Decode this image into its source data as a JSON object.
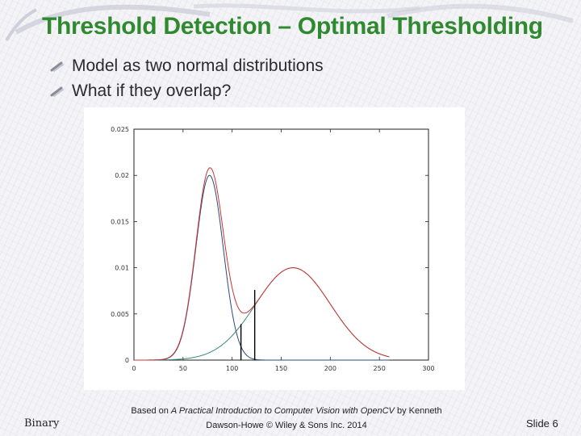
{
  "slide": {
    "title": "Threshold Detection – Optimal Thresholding",
    "bullets": [
      {
        "text": "Model as two normal distributions"
      },
      {
        "text": "What if they overlap?"
      }
    ]
  },
  "footer": {
    "left": "Binary",
    "center_prefix": "Based on",
    "center_book": "A Practical Introduction to Computer Vision with OpenCV",
    "center_suffix": "by Kenneth Dawson-Howe © Wiley & Sons Inc. 2014",
    "slide_number": "Slide 6"
  },
  "colors": {
    "title": "#2f8a2f",
    "total_curve": "#cc3333",
    "dist1_curve": "#2a4a7a",
    "dist2_curve": "#3a8a7a"
  },
  "chart_data": {
    "type": "line",
    "xlim": [
      0,
      300
    ],
    "ylim": [
      0,
      0.025
    ],
    "x_ticks": [
      0,
      50,
      100,
      150,
      200,
      250,
      300
    ],
    "y_ticks": [
      0,
      0.005,
      0.01,
      0.015,
      0.02,
      0.025
    ],
    "y_tick_labels": [
      "0",
      "0.005",
      "0.01",
      "0.015",
      "0.02",
      "0.025"
    ],
    "components": [
      {
        "mean": 77,
        "sd": 14,
        "amplitude": 0.02
      },
      {
        "mean": 162,
        "sd": 38,
        "amplitude": 0.01
      }
    ],
    "x_range": [
      0,
      260
    ],
    "threshold_lines": [
      {
        "x": 109,
        "y": 0.0039
      },
      {
        "x": 123,
        "y": 0.0076
      }
    ]
  }
}
